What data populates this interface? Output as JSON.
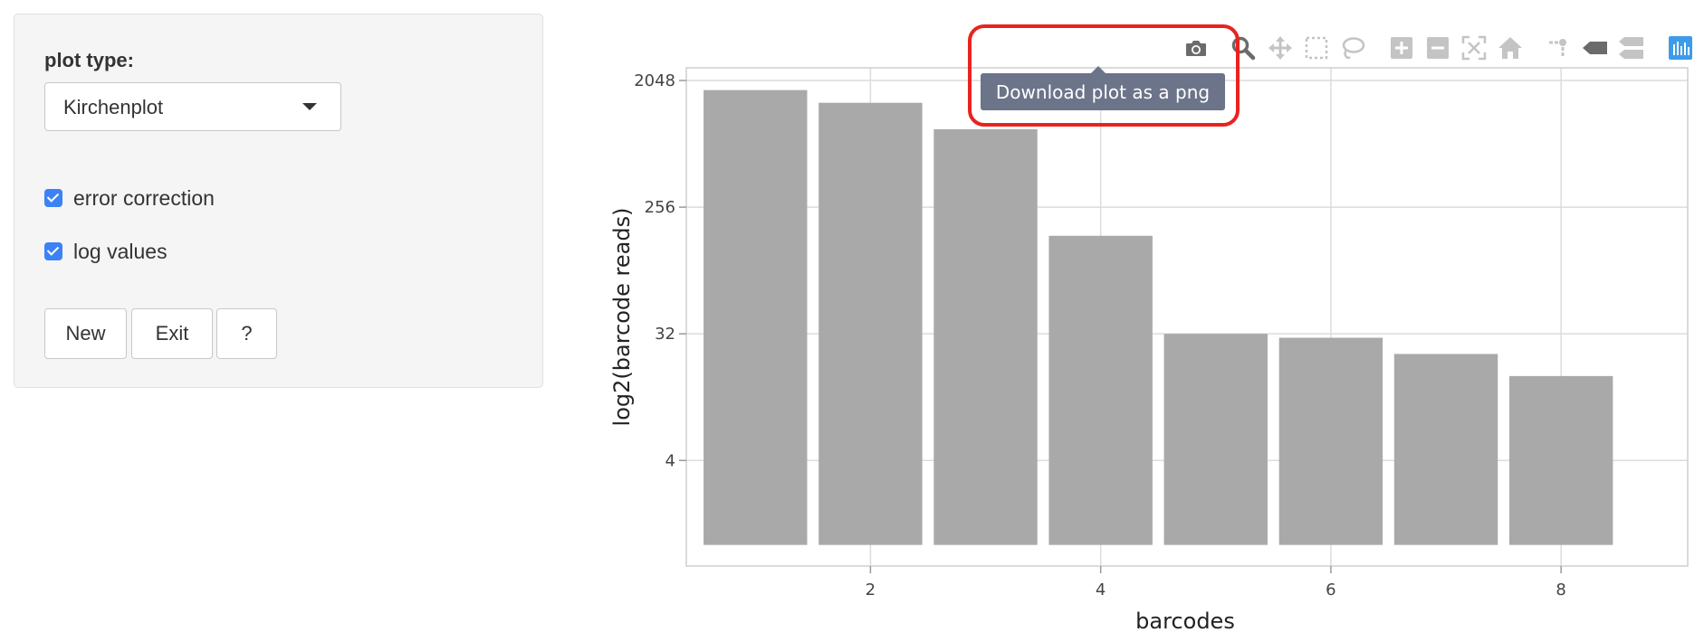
{
  "sidebar": {
    "plot_type_label": "plot type:",
    "plot_type_value": "Kirchenplot",
    "error_correction_label": "error correction",
    "error_correction_checked": true,
    "log_values_label": "log values",
    "log_values_checked": true,
    "buttons": {
      "new": "New",
      "exit": "Exit",
      "help": "?"
    }
  },
  "modebar": {
    "tooltip": "Download plot as a png",
    "icons": [
      "camera-icon",
      "zoom-icon",
      "pan-icon",
      "box-select-icon",
      "lasso-select-icon",
      "zoom-in-icon",
      "zoom-out-icon",
      "autoscale-icon",
      "reset-axes-icon",
      "spike-lines-icon",
      "hover-closest-icon",
      "hover-compare-icon",
      "plotly-logo-icon"
    ]
  },
  "colors": {
    "bar": "#a9a9a9",
    "grid": "#dcdcdc",
    "checkbox": "#3b82f6",
    "tooltip_bg": "#6b7489",
    "highlight": "#e8231f"
  },
  "chart_data": {
    "type": "bar",
    "x": [
      1,
      2,
      3,
      4,
      5,
      6,
      7,
      8
    ],
    "values": [
      1750,
      1420,
      920,
      160,
      32,
      30,
      23,
      16
    ],
    "xlabel": "barcodes",
    "ylabel": "log2(barcode reads)",
    "y_scale": "log2",
    "yticks": [
      4,
      32,
      256,
      2048
    ],
    "ytick_labels": [
      "4",
      "32",
      "256",
      "2048"
    ],
    "xticks": [
      2,
      4,
      6,
      8
    ],
    "xtick_labels": [
      "2",
      "4",
      "6",
      "8"
    ],
    "xlim": [
      0.4,
      9.1
    ],
    "bar_base": 1,
    "grid": true
  }
}
